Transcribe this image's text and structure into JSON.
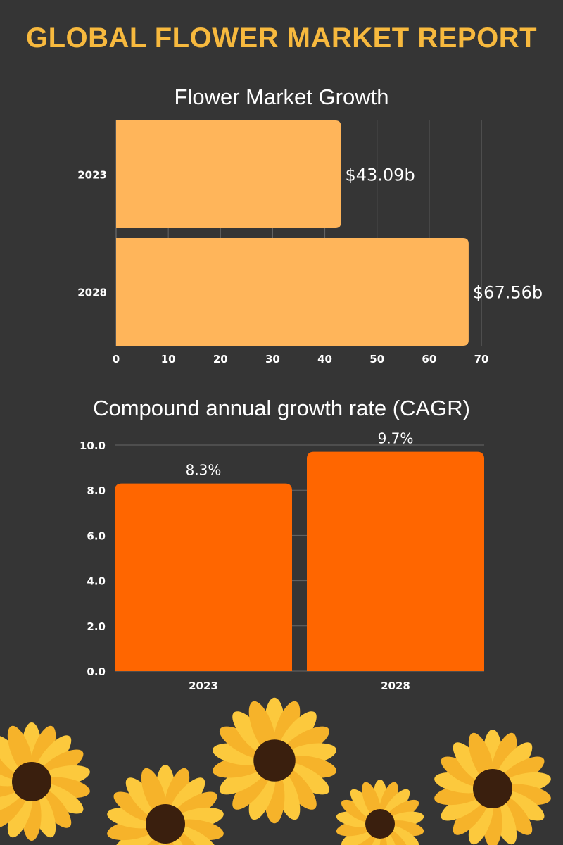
{
  "header": {
    "title": "GLOBAL FLOWER MARKET REPORT"
  },
  "chart_data": [
    {
      "type": "bar",
      "orientation": "horizontal",
      "title": "Flower Market Growth",
      "categories": [
        "2023",
        "2028"
      ],
      "values": [
        43.09,
        67.56
      ],
      "data_labels": [
        "$43.09b",
        "$67.56b"
      ],
      "xlim": [
        0,
        70
      ],
      "x_ticks": [
        "0",
        "10",
        "20",
        "30",
        "40",
        "50",
        "60",
        "70"
      ],
      "xlabel": "",
      "ylabel": "",
      "grid": true,
      "color": "#ffb55a"
    },
    {
      "type": "bar",
      "title": "Compound annual growth rate (CAGR)",
      "categories": [
        "2023",
        "2028"
      ],
      "values": [
        8.3,
        9.7
      ],
      "data_labels": [
        "8.3%",
        "9.7%"
      ],
      "ylim": [
        0,
        10
      ],
      "y_ticks": [
        "0.0",
        "2.0",
        "4.0",
        "6.0",
        "8.0",
        "10.0"
      ],
      "xlabel": "",
      "ylabel": "",
      "grid": true,
      "color": "#ff6600"
    }
  ]
}
